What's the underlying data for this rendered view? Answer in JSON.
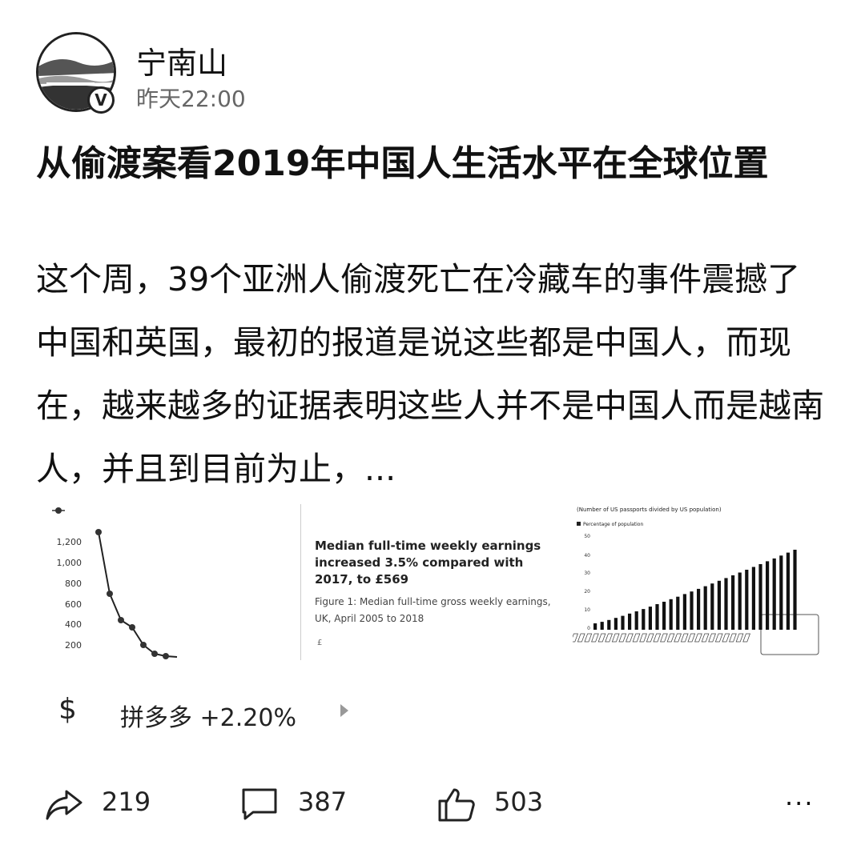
{
  "post": {
    "author": "宁南山",
    "time": "昨天22:00",
    "verified_mark": "V",
    "title": "从偷渡案看2019年中国人生活水平在全球位置",
    "excerpt": "这个周，39个亚洲人偷渡死亡在冷藏车的事件震撼了中国和英国，最初的报道是说这些都是中国人，而现在，越来越多的证据表明这些人并不是中国人而是越南人，并且到目前为止，..."
  },
  "images": {
    "chart1": {
      "y_ticks": [
        "1,200",
        "1,000",
        "800",
        "600",
        "400",
        "200"
      ]
    },
    "chart2": {
      "heading": "Median full-time weekly earnings increased 3.5% compared with 2017, to £569",
      "subheading": "Figure 1: Median full-time gross weekly earnings, UK, April 2005 to 2018",
      "footer": "£"
    },
    "chart3": {
      "title": "(Number of US passports divided by US population)",
      "legend": "Percentage of population",
      "y_ticks": [
        "50",
        "40",
        "30",
        "20",
        "10",
        "0"
      ]
    }
  },
  "stock": {
    "icon": "dollar-icon",
    "label": "拼多多 +2.20%"
  },
  "actions": {
    "share_count": "219",
    "comment_count": "387",
    "like_count": "503",
    "more_label": "···"
  }
}
